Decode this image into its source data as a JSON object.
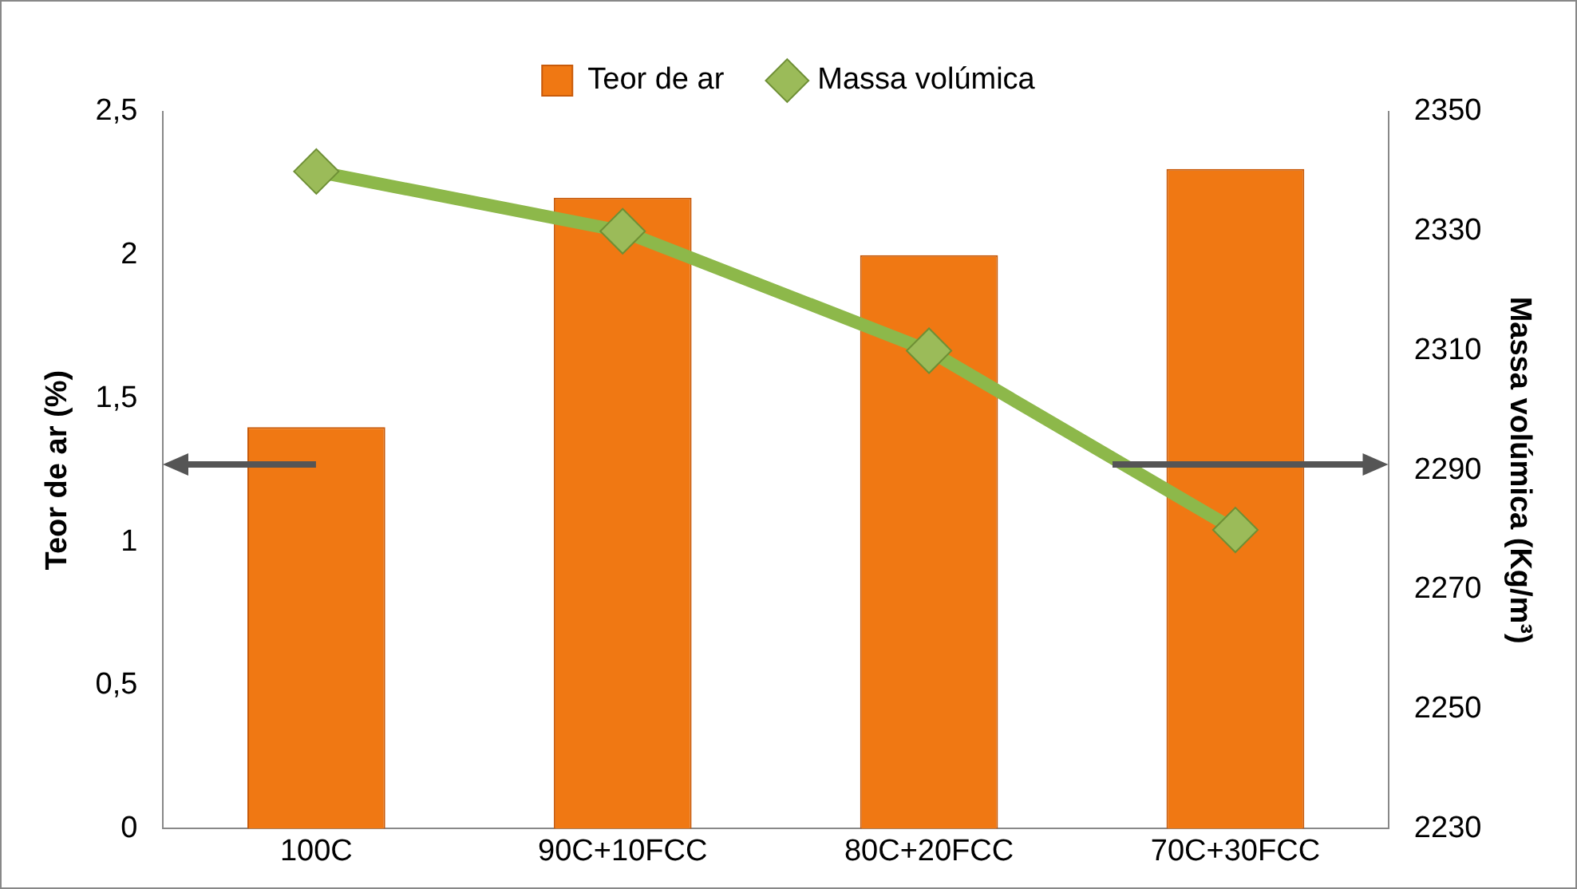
{
  "chart_data": {
    "type": "bar",
    "categories": [
      "100C",
      "90C+10FCC",
      "80C+20FCC",
      "70C+30FCC"
    ],
    "ylabel": "Teor de ar (%)",
    "y2label": "Massa volúmica (Kg/m³)",
    "series": [
      {
        "name": "Teor de ar",
        "color": "#f07813",
        "values": [
          1.4,
          2.2,
          2.0,
          2.3
        ]
      },
      {
        "name": "Massa volúmica",
        "type": "line",
        "axis": "y2",
        "color": "#8db84a",
        "values": [
          2340,
          2330,
          2310,
          2280
        ]
      }
    ],
    "ylim": [
      0,
      2.5
    ],
    "yticks": [
      0,
      {
        "value": 0.5,
        "label": "0,5"
      },
      1,
      {
        "value": 1.5,
        "label": "1,5"
      },
      2,
      {
        "value": 2.5,
        "label": "2,5"
      }
    ],
    "y2lim": [
      2230,
      2350
    ],
    "y2ticks": [
      2230,
      2250,
      2270,
      2290,
      2310,
      2330,
      2350
    ],
    "grid": false,
    "legend": "top",
    "marker": "diamond"
  }
}
